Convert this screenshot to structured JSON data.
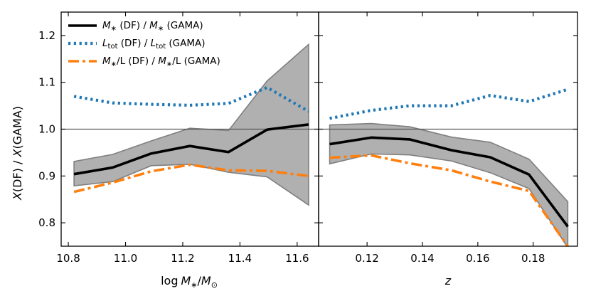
{
  "chart_data": [
    {
      "type": "line",
      "panel": "left",
      "ylabel": "X(DF) / X(GAMA)",
      "xlabel": "log M*/M⊙",
      "xlim": [
        10.775,
        11.675
      ],
      "ylim": [
        0.75,
        1.25
      ],
      "xticks": [
        "10.8",
        "11.0",
        "11.2",
        "11.4",
        "11.6"
      ],
      "xtick_values": [
        10.8,
        11.0,
        11.2,
        11.4,
        11.6
      ],
      "yticks": [
        "0.8",
        "0.9",
        "1.0",
        "1.1",
        "1.2"
      ],
      "ytick_values": [
        0.8,
        0.9,
        1.0,
        1.1,
        1.2
      ],
      "reference_line": 1.0,
      "x": [
        10.82,
        10.955,
        11.09,
        11.225,
        11.36,
        11.495,
        11.64
      ],
      "band": {
        "lower": [
          0.879,
          0.888,
          0.922,
          0.925,
          0.908,
          0.898,
          0.838
        ],
        "upper": [
          0.931,
          0.946,
          0.975,
          1.002,
          0.997,
          1.103,
          1.181
        ]
      },
      "series": [
        {
          "name": "M* (DF) / M* (GAMA)",
          "style": "solid",
          "color": "#000000",
          "values": [
            0.904,
            0.918,
            0.948,
            0.964,
            0.951,
            0.999,
            1.01
          ]
        },
        {
          "name": "Ltot (DF) / Ltot (GAMA)",
          "style": "dotted",
          "color": "#1f77b4",
          "values": [
            1.07,
            1.056,
            1.053,
            1.051,
            1.055,
            1.089,
            1.038
          ]
        },
        {
          "name": "M*/L (DF) / M*/L (GAMA)",
          "style": "dashdot",
          "color": "#ff7f0e",
          "values": [
            0.866,
            0.886,
            0.91,
            0.924,
            0.912,
            0.911,
            0.9
          ]
        }
      ],
      "legend": {
        "placement": "top-left",
        "entries": [
          {
            "pre": "M",
            "sub": "∗",
            "mid": " (DF) / ",
            "pre2": "M",
            "sub2": "∗",
            "post": " (GAMA)"
          },
          {
            "pre": "L",
            "sub": "tot",
            "mid": " (DF) / ",
            "pre2": "L",
            "sub2": "tot",
            "post": " (GAMA)"
          },
          {
            "pre": "M",
            "sub": "∗",
            "mid": "/L (DF) / ",
            "pre2": "M",
            "sub2": "∗",
            "post": "/L (GAMA)"
          }
        ]
      }
    },
    {
      "type": "line",
      "panel": "right",
      "xlabel": "z",
      "xlim": [
        0.1025,
        0.196
      ],
      "ylim": [
        0.75,
        1.25
      ],
      "xticks": [
        "0.12",
        "0.14",
        "0.16",
        "0.18"
      ],
      "xtick_values": [
        0.12,
        0.14,
        0.16,
        0.18
      ],
      "reference_line": 1.0,
      "x": [
        0.1065,
        0.1215,
        0.1355,
        0.1505,
        0.1645,
        0.1785,
        0.1925
      ],
      "band": {
        "lower": [
          0.926,
          0.947,
          0.945,
          0.932,
          0.907,
          0.873,
          0.747
        ],
        "upper": [
          1.009,
          1.012,
          1.005,
          0.983,
          0.972,
          0.936,
          0.845
        ]
      },
      "series": [
        {
          "name": "M* (DF) / M* (GAMA)",
          "style": "solid",
          "color": "#000000",
          "values": [
            0.968,
            0.982,
            0.978,
            0.955,
            0.94,
            0.903,
            0.792
          ]
        },
        {
          "name": "Ltot (DF) / Ltot (GAMA)",
          "style": "dotted",
          "color": "#1f77b4",
          "values": [
            1.023,
            1.04,
            1.05,
            1.05,
            1.072,
            1.059,
            1.085
          ]
        },
        {
          "name": "M*/L (DF) / M*/L (GAMA)",
          "style": "dashdot",
          "color": "#ff7f0e",
          "values": [
            0.939,
            0.944,
            0.927,
            0.912,
            0.888,
            0.868,
            0.75
          ]
        }
      ]
    }
  ]
}
